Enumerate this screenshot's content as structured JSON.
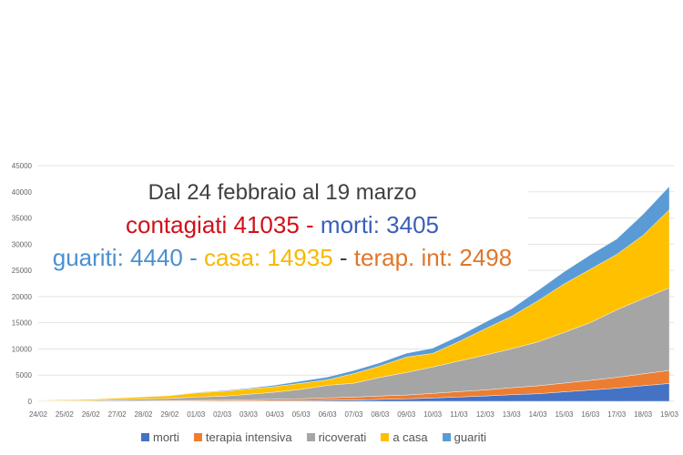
{
  "chart_data": {
    "type": "area",
    "stacked": true,
    "title": "Dal 24 febbraio al 19 marzo",
    "subtitle_line1": {
      "a": "contagiati 41035",
      "sep": " - ",
      "b": "morti: 3405"
    },
    "subtitle_line2": {
      "a": "guariti: 4440",
      "sep1": " - ",
      "b": "casa: 14935",
      "sep2": " - ",
      "c": "terap. int: 2498"
    },
    "xlabel": "",
    "ylabel": "",
    "ylim": [
      0,
      45000
    ],
    "yticks": [
      0,
      5000,
      10000,
      15000,
      20000,
      25000,
      30000,
      35000,
      40000,
      45000
    ],
    "grid": true,
    "legend_position": "bottom",
    "categories": [
      "24/02",
      "25/02",
      "26/02",
      "27/02",
      "28/02",
      "29/02",
      "01/03",
      "02/03",
      "03/03",
      "04/03",
      "05/03",
      "06/03",
      "07/03",
      "08/03",
      "09/03",
      "10/03",
      "11/03",
      "12/03",
      "13/03",
      "14/03",
      "15/03",
      "16/03",
      "17/03",
      "18/03",
      "19/03"
    ],
    "series": [
      {
        "name": "morti",
        "color": "#4472c4",
        "values": [
          7,
          10,
          12,
          17,
          21,
          29,
          34,
          52,
          79,
          107,
          148,
          197,
          233,
          366,
          463,
          631,
          827,
          1016,
          1266,
          1441,
          1809,
          2158,
          2503,
          2978,
          3405
        ]
      },
      {
        "name": "terapia intensiva",
        "color": "#ed7d31",
        "values": [
          26,
          35,
          36,
          56,
          64,
          105,
          140,
          166,
          229,
          295,
          351,
          462,
          567,
          650,
          733,
          877,
          1028,
          1153,
          1328,
          1518,
          1672,
          1851,
          2060,
          2257,
          2498
        ]
      },
      {
        "name": "ricoverati",
        "color": "#a5a5a5",
        "values": [
          101,
          114,
          128,
          248,
          345,
          401,
          639,
          742,
          1034,
          1346,
          1790,
          2394,
          2651,
          3557,
          4316,
          5038,
          5838,
          6650,
          7426,
          8372,
          9663,
          11025,
          12894,
          14363,
          15757
        ]
      },
      {
        "name": "a casa",
        "color": "#ffc000",
        "values": [
          94,
          162,
          221,
          284,
          412,
          543,
          798,
          927,
          1000,
          1065,
          1155,
          1060,
          1843,
          2180,
          2936,
          2599,
          3724,
          5036,
          6201,
          7860,
          9268,
          10197,
          10590,
          12090,
          14935
        ]
      },
      {
        "name": "guariti",
        "color": "#5b9bd5",
        "values": [
          1,
          1,
          3,
          45,
          46,
          50,
          83,
          149,
          160,
          276,
          414,
          523,
          589,
          622,
          724,
          1004,
          1045,
          1258,
          1439,
          1966,
          2335,
          2749,
          2941,
          4025,
          4440
        ]
      }
    ]
  }
}
